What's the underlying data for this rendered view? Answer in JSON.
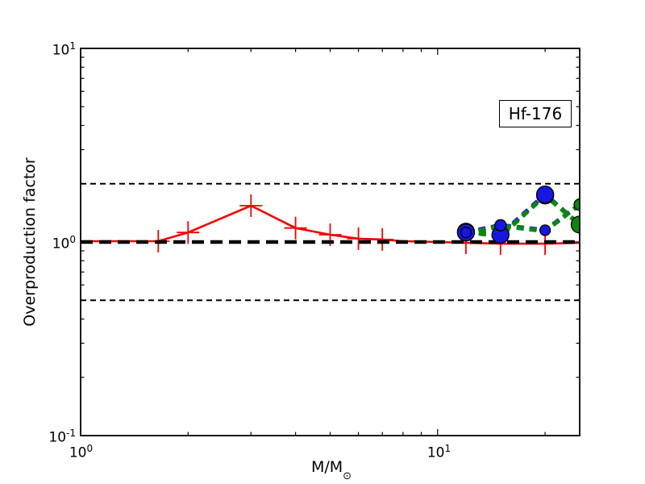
{
  "annotation": {
    "text": "Hf-176"
  },
  "axes": {
    "y": {
      "title": "Overproduction factor",
      "ticks": [
        {
          "base": "10",
          "exp": "1"
        },
        {
          "base": "10",
          "exp": "0"
        },
        {
          "base": "10",
          "exp": "-1"
        }
      ]
    },
    "x": {
      "title_main": "M/M",
      "title_sub": "⊙",
      "ticks": [
        {
          "base": "10",
          "exp": "0"
        },
        {
          "base": "10",
          "exp": "1"
        }
      ]
    }
  },
  "chart_data": {
    "type": "line",
    "title": "",
    "xlabel": "M/M_sun",
    "ylabel": "Overproduction factor",
    "annotation": "Hf-176",
    "xscale": "log",
    "yscale": "log",
    "xlim": [
      1,
      25
    ],
    "ylim": [
      0.1,
      10
    ],
    "grid": false,
    "legend": "none",
    "x_major_ticks": [
      1,
      10
    ],
    "x_minor_ticks": [
      2,
      3,
      4,
      5,
      6,
      7,
      8,
      9,
      20
    ],
    "y_major_ticks": [
      0.1,
      1,
      10
    ],
    "y_minor_ticks": [
      0.2,
      0.3,
      0.4,
      0.5,
      0.6,
      0.7,
      0.8,
      0.9,
      2,
      3,
      4,
      5,
      6,
      7,
      8,
      9
    ],
    "colors": {
      "red": "#f20000",
      "blue": "#1717e0",
      "green": "#098909",
      "black": "#000000"
    },
    "reference_lines": [
      {
        "y": 2.0,
        "color": "black",
        "width": 2,
        "dash": "7 5"
      },
      {
        "y": 0.5,
        "color": "black",
        "width": 2,
        "dash": "7 5"
      },
      {
        "y": 1.0,
        "color": "black",
        "width": 4.5,
        "dash": "15 8"
      }
    ],
    "series": [
      {
        "name": "low-mass-red-solid",
        "color": "red",
        "width": 2.6,
        "dash": null,
        "marker": "plus",
        "marker_half_size": 14,
        "marker_stroke": 1.8,
        "x": [
          1,
          1.3,
          1.65,
          2,
          3,
          4,
          5,
          6,
          7,
          8,
          10,
          12,
          15,
          20,
          25
        ],
        "y": [
          1.01,
          1.01,
          1.01,
          1.12,
          1.54,
          1.18,
          1.09,
          1.04,
          1.03,
          1.01,
          1.0,
          0.99,
          0.98,
          0.98,
          0.99
        ],
        "marker_x": [
          1.65,
          2,
          3,
          4,
          5,
          6,
          7,
          12,
          15,
          20,
          25
        ],
        "marker_y": [
          1.01,
          1.12,
          1.54,
          1.18,
          1.09,
          1.04,
          1.03,
          0.99,
          0.98,
          0.98,
          0.99
        ]
      },
      {
        "name": "massive-blue-upper",
        "color": "blue",
        "width": 5.5,
        "dash": "9 7",
        "x": [
          12,
          15,
          20,
          25
        ],
        "y": [
          1.12,
          1.09,
          1.76,
          1.23
        ]
      },
      {
        "name": "massive-blue-lower",
        "color": "blue",
        "width": 5.5,
        "dash": "9 7",
        "x": [
          12,
          15,
          20,
          25
        ],
        "y": [
          1.12,
          1.22,
          1.15,
          1.56
        ]
      },
      {
        "name": "massive-green-upper",
        "color": "green",
        "width": 5.5,
        "dash": "9 7",
        "x": [
          12,
          15,
          20,
          25
        ],
        "y": [
          1.13,
          1.07,
          1.74,
          1.23
        ]
      },
      {
        "name": "massive-green-lower",
        "color": "green",
        "width": 5.5,
        "dash": "9 7",
        "x": [
          12,
          15,
          20,
          25
        ],
        "y": [
          1.1,
          1.21,
          1.14,
          1.56
        ]
      }
    ],
    "circle_markers_draw_order": [
      {
        "color": "green",
        "x": 12,
        "y": 1.13,
        "r": 10.5
      },
      {
        "color": "green",
        "x": 15,
        "y": 1.21,
        "r": 7
      },
      {
        "color": "green",
        "x": 20,
        "y": 1.74,
        "r": 10.5
      },
      {
        "color": "blue",
        "x": 12,
        "y": 1.12,
        "r": 10.5
      },
      {
        "color": "blue",
        "x": 12,
        "y": 1.12,
        "r": 6.5
      },
      {
        "color": "blue",
        "x": 15,
        "y": 1.09,
        "r": 10.5
      },
      {
        "color": "blue",
        "x": 15,
        "y": 1.22,
        "r": 7
      },
      {
        "color": "blue",
        "x": 20,
        "y": 1.76,
        "r": 10.5
      },
      {
        "color": "blue",
        "x": 20,
        "y": 1.15,
        "r": 6.5
      },
      {
        "color": "green",
        "x": 25,
        "y": 1.56,
        "r": 7
      },
      {
        "color": "green",
        "x": 25,
        "y": 1.23,
        "r": 10.5
      }
    ]
  }
}
